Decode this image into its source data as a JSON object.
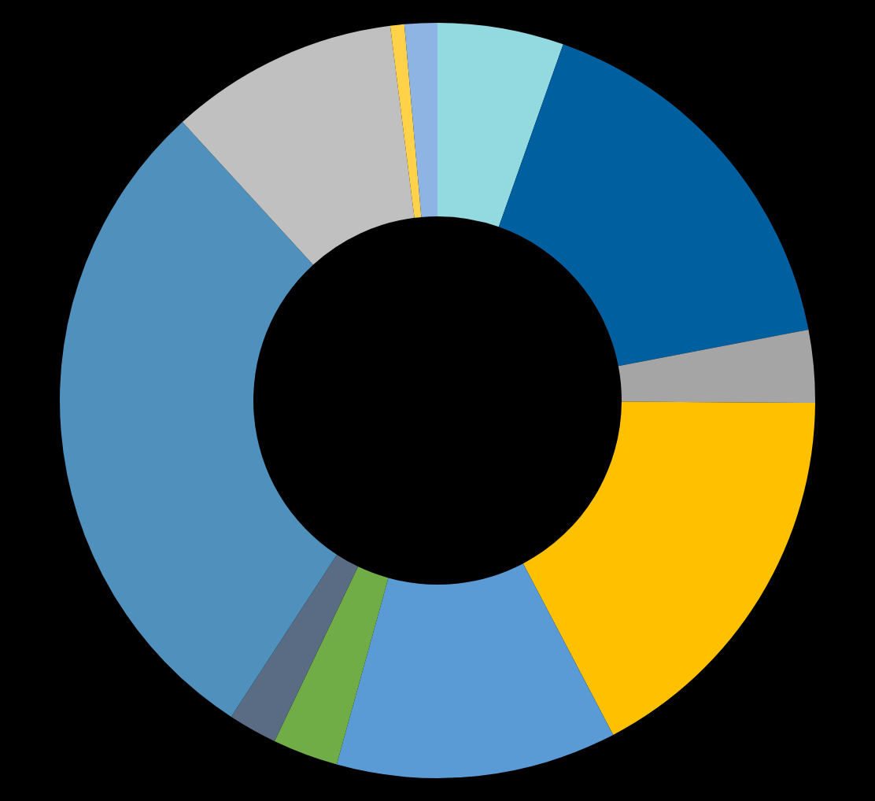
{
  "chart_data": {
    "type": "donut",
    "categories": [
      null,
      null,
      null,
      null,
      null,
      null,
      null,
      null,
      null,
      null,
      null
    ],
    "values": [
      5.4,
      16.6,
      3.1,
      17.2,
      12.0,
      2.8,
      2.1,
      29.0,
      9.8,
      0.6,
      1.4
    ],
    "colors": [
      "#92d9e0",
      "#005f9e",
      "#a5a5a5",
      "#ffc000",
      "#5b9bd5",
      "#70ad47",
      "#5a6b84",
      "#4f91bc",
      "#c0c0c0",
      "#ffd24a",
      "#8db4e2"
    ]
  }
}
